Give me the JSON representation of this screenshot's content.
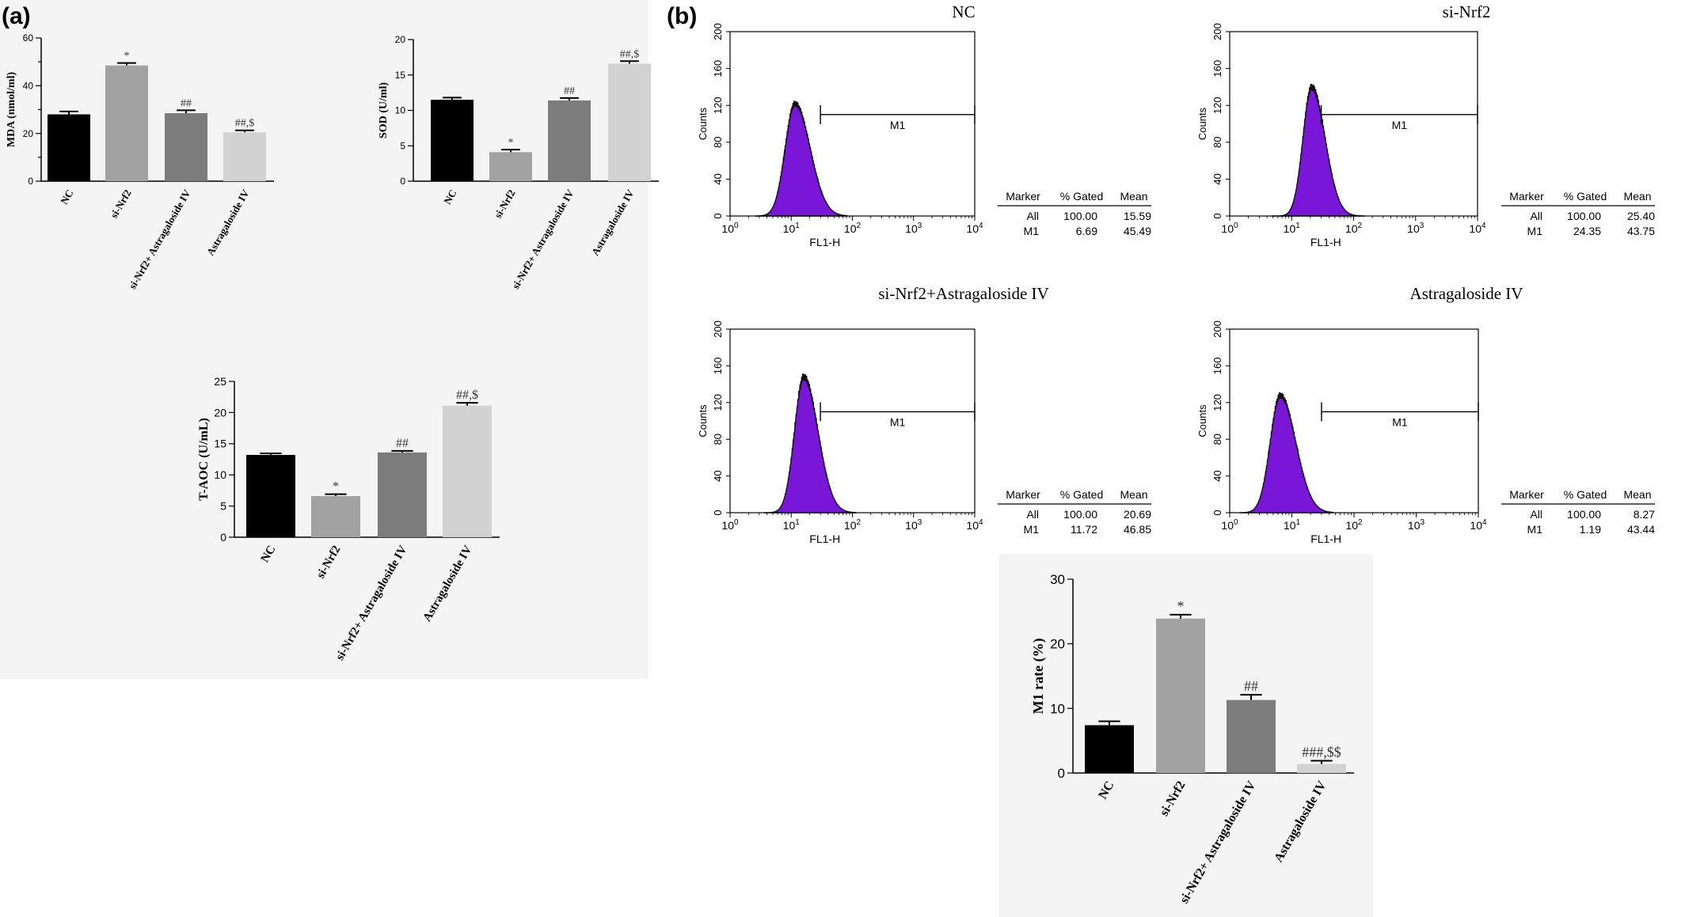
{
  "panel_labels": [
    "(a)",
    "(b)"
  ],
  "colors": {
    "bar_NC": "#000000",
    "bar_siNrf2": "#a2a2a2",
    "bar_combo": "#7c7c7c",
    "bar_AS": "#d2d2d2",
    "histogram_fill": "#7a16d8",
    "histogram_edge": "#111111",
    "panel_background": "#f4f4f4"
  },
  "chart_data": [
    {
      "id": "mda",
      "type": "bar",
      "categories": [
        "NC",
        "si-Nrf2",
        "si-Nrf2+ Astragaloside IV",
        "Astragaloside IV"
      ],
      "values": [
        28,
        48.5,
        28.5,
        20.5
      ],
      "errors": [
        1.2,
        1.0,
        1.2,
        0.8
      ],
      "annotations": [
        "",
        "*",
        "##",
        "##,$"
      ],
      "ylabel": "MDA (nmol/ml)",
      "ylim": [
        0,
        60
      ],
      "yticks": [
        0,
        20,
        40,
        60
      ],
      "yticks_minor": [
        10,
        30,
        50
      ]
    },
    {
      "id": "sod",
      "type": "bar",
      "categories": [
        "NC",
        "si-Nrf2",
        "si-Nrf2+ Astragaloside IV",
        "Astragaloside IV"
      ],
      "values": [
        11.5,
        4.1,
        11.4,
        16.6
      ],
      "errors": [
        0.3,
        0.35,
        0.35,
        0.35
      ],
      "annotations": [
        "",
        "*",
        "##",
        "##,$"
      ],
      "ylabel": "SOD (U/ml)",
      "ylim": [
        0,
        20
      ],
      "yticks": [
        0,
        5,
        10,
        15,
        20
      ]
    },
    {
      "id": "taoc",
      "type": "bar",
      "categories": [
        "NC",
        "si-Nrf2",
        "si-Nrf2+ Astragaloside IV",
        "Astragaloside IV"
      ],
      "values": [
        13.2,
        6.6,
        13.6,
        21.1
      ],
      "errors": [
        0.25,
        0.3,
        0.25,
        0.45
      ],
      "annotations": [
        "",
        "*",
        "##",
        "##,$"
      ],
      "ylabel": "T-AOC (U/mL)",
      "ylim": [
        0,
        25
      ],
      "yticks": [
        0,
        5,
        10,
        15,
        20,
        25
      ]
    },
    {
      "id": "m1rate",
      "type": "bar",
      "categories": [
        "NC",
        "si-Nrf2",
        "si-Nrf2+ Astragaloside IV",
        "Astragaloside IV"
      ],
      "values": [
        7.4,
        23.9,
        11.3,
        1.4
      ],
      "errors": [
        0.6,
        0.6,
        0.8,
        0.5
      ],
      "annotations": [
        "",
        "*",
        "##",
        "###,$$"
      ],
      "ylabel": "M1 rate (%)",
      "ylim": [
        0,
        30
      ],
      "yticks": [
        0,
        10,
        20,
        30
      ]
    }
  ],
  "flow": [
    {
      "title": "NC",
      "peak": 11.5,
      "peak_count": 122,
      "sigma": 0.16,
      "marker": {
        "label": "M1",
        "from": 30,
        "to": 10000,
        "y": 110
      },
      "stats": {
        "headers": [
          "Marker",
          "% Gated",
          "Mean"
        ],
        "rows": [
          [
            "All",
            "100.00",
            "15.59"
          ],
          [
            "M1",
            "6.69",
            "45.49"
          ]
        ]
      }
    },
    {
      "title": "si-Nrf2",
      "peak": 21,
      "peak_count": 140,
      "sigma": 0.14,
      "marker": {
        "label": "M1",
        "from": 30,
        "to": 10000,
        "y": 110
      },
      "stats": {
        "headers": [
          "Marker",
          "% Gated",
          "Mean"
        ],
        "rows": [
          [
            "All",
            "100.00",
            "25.40"
          ],
          [
            "M1",
            "24.35",
            "43.75"
          ]
        ]
      }
    },
    {
      "title": "si-Nrf2+Astragaloside IV",
      "peak": 16,
      "peak_count": 148,
      "sigma": 0.15,
      "marker": {
        "label": "M1",
        "from": 30,
        "to": 10000,
        "y": 110
      },
      "stats": {
        "headers": [
          "Marker",
          "% Gated",
          "Mean"
        ],
        "rows": [
          [
            "All",
            "100.00",
            "20.69"
          ],
          [
            "M1",
            "11.72",
            "46.85"
          ]
        ]
      }
    },
    {
      "title": "Astragaloside IV",
      "peak": 6.5,
      "peak_count": 128,
      "sigma": 0.16,
      "marker": {
        "label": "M1",
        "from": 30,
        "to": 10000,
        "y": 110
      },
      "stats": {
        "headers": [
          "Marker",
          "% Gated",
          "Mean"
        ],
        "rows": [
          [
            "All",
            "100.00",
            "8.27"
          ],
          [
            "M1",
            "1.19",
            "43.44"
          ]
        ]
      }
    }
  ],
  "flow_axes": {
    "ylabel": "Counts",
    "xlabel": "FL1-H",
    "yticks": [
      "0",
      "40",
      "80",
      "120",
      "160",
      "200"
    ],
    "x_decade_base": "10",
    "x_decade_exps": [
      "0",
      "1",
      "2",
      "3",
      "4"
    ]
  }
}
